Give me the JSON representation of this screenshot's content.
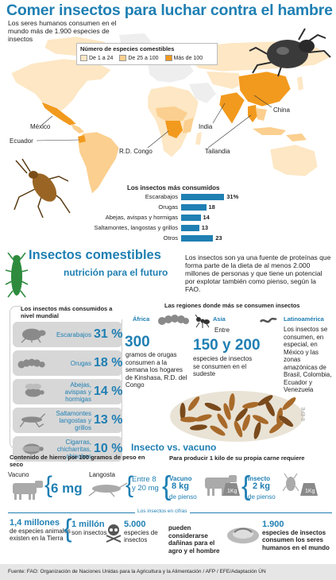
{
  "header": {
    "title": "Comer insectos para luchar contra el hambre",
    "subtitle": "Los seres humanos consumen en el mundo más de 1.900 especies de insectos"
  },
  "map": {
    "legend_title": "Número de especies comestibles",
    "legend": [
      {
        "label": "De 1 a 24",
        "color": "#fde7c4"
      },
      {
        "label": "De 25 a 100",
        "color": "#fbcf8f"
      },
      {
        "label": "Más de 100",
        "color": "#f29a1e"
      }
    ],
    "countries": [
      "México",
      "Ecuador",
      "R.D. Congo",
      "India",
      "China",
      "Tailandia"
    ]
  },
  "top_consumed": {
    "title": "Los insectos más consumidos",
    "items": [
      {
        "label": "Escarabajos",
        "value": "31%",
        "pct": 31
      },
      {
        "label": "Orugas",
        "value": "18",
        "pct": 18
      },
      {
        "label": "Abejas, avispas y hormigas",
        "value": "14",
        "pct": 14
      },
      {
        "label": "Saltamontes, langostas y grillos",
        "value": "13",
        "pct": 13
      },
      {
        "label": "Otros",
        "value": "23",
        "pct": 23
      }
    ]
  },
  "section2": {
    "title": "Insectos comestibles",
    "subtitle": "nutrición para el futuro",
    "intro": "Los insectos son ya una fuente de proteínas que forma parte de la dieta de al menos 2.000 millones de personas y que tiene un potencial por explotar también como pienso, según la FAO."
  },
  "most_box": {
    "title": "Los insectos más consumidos a nivel mundial",
    "items": [
      {
        "label": "Escarabajos",
        "pct": "31 %",
        "icon": "beetle-icon"
      },
      {
        "label": "Orugas",
        "pct": "18 %",
        "icon": "caterpillar-icon"
      },
      {
        "label": "Abejas, avispas y hormigas",
        "pct": "14 %",
        "icon": "bee-icon"
      },
      {
        "label": "Saltamontes langostas y grillos",
        "pct": "13 %",
        "icon": "grasshopper-icon"
      },
      {
        "label": "Cigarras, chicharritas, chinches",
        "pct": "10 %",
        "icon": "cicada-icon"
      }
    ]
  },
  "regions": {
    "title": "Las regiones donde más se consumen insectos",
    "africa": {
      "name": "África",
      "number": "300",
      "text": "gramos de orugas consumen a la semana los hogares de Kinshasa, R.D. del Congo"
    },
    "asia": {
      "name": "Asia",
      "prefix": "Entre",
      "number": "150 y 200",
      "text": "especies de insectos se consumen en el sudeste"
    },
    "latam": {
      "name": "Latinoamérica",
      "text": "Los insectos se consumen, en especial, en México y las zonas amazónicas de Brasil, Colombia, Ecuador y Venezuela"
    }
  },
  "versus": {
    "title": "Insecto vs. vacuno",
    "iron_title": "Contenido de hierro por 100 gramos de peso en seco",
    "vacuno_label": "Vacuno",
    "vacuno_value": "6 mg",
    "langosta_label": "Langosta",
    "langosta_value": "Entre 8 y 20 mg",
    "meat_title": "Para producir 1 kilo de su propia carne requiere",
    "meat_vacuno_label": "Vacuno",
    "meat_vacuno_value": "8 kg",
    "meat_vacuno_unit": "de pienso",
    "kg_label": "1Kg",
    "meat_insecto_label": "Insecto",
    "meat_insecto_value": "2 kg",
    "meat_insecto_unit": "de pienso"
  },
  "cifras": {
    "title": "Los insectos en cifras",
    "items": [
      {
        "num": "1,4 millones",
        "text": "de especies animales existen en la Tierra"
      },
      {
        "num": "1 millón",
        "text": "son insectos"
      },
      {
        "num": "5.000",
        "text": "especies de insectos"
      },
      {
        "num": "",
        "text": "pueden considerarse dañinas para el agro y el hombre"
      },
      {
        "num": "1.900",
        "text": "especies de insectos consumen los seres humanos en el mundo"
      }
    ]
  },
  "footer": {
    "source": "Fuente: FAO: Organización de Naciones Unidas para la Agricultura y la Alimentación / AFP / EFE/Adaptación ÚN"
  },
  "credit": "© EFE"
}
